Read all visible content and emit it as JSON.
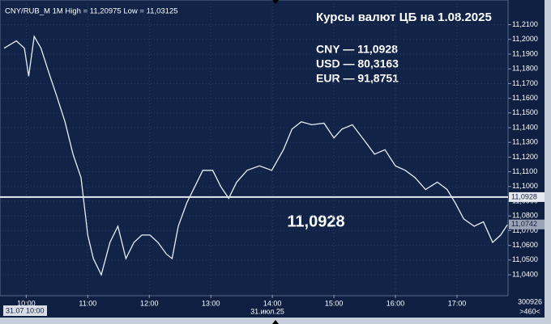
{
  "chart_data": {
    "type": "line",
    "header": "CNY/RUB_M 1M High = 11,20975 Low = 11,03125",
    "title": "Курсы валют ЦБ на 1.08.2025",
    "info": [
      "CNY — 11,0928",
      "USD — 80,3163",
      "EUR — 91,8751"
    ],
    "annotation": "11,0928",
    "level": {
      "value": 11.0928,
      "label": "11,0928"
    },
    "current": {
      "value": 11.0742,
      "label": "11,0742"
    },
    "x_start_label": "31.07 10:00",
    "date_label": "31.июл.25",
    "corner": [
      "300926",
      ">460<"
    ],
    "color": "#e8eef8",
    "grid": true,
    "xlim": [
      9.6,
      17.83
    ],
    "ylim": [
      11.0263,
      11.2202
    ],
    "xticks": [
      {
        "value": 10,
        "label": "10:00"
      },
      {
        "value": 11,
        "label": "11:00"
      },
      {
        "value": 12,
        "label": "12:00"
      },
      {
        "value": 13,
        "label": "13:00"
      },
      {
        "value": 14,
        "label": "14:00"
      },
      {
        "value": 15,
        "label": "15:00"
      },
      {
        "value": 16,
        "label": "16:00"
      },
      {
        "value": 17,
        "label": "17:00"
      }
    ],
    "yticks": [
      {
        "value": 11.04,
        "label": "11,0400"
      },
      {
        "value": 11.05,
        "label": "11,0500"
      },
      {
        "value": 11.06,
        "label": "11,0600"
      },
      {
        "value": 11.07,
        "label": "11,0700"
      },
      {
        "value": 11.08,
        "label": "11,0800"
      },
      {
        "value": 11.09,
        "label": "11,0900"
      },
      {
        "value": 11.1,
        "label": "11,1000"
      },
      {
        "value": 11.11,
        "label": "11,1100"
      },
      {
        "value": 11.12,
        "label": "11,1200"
      },
      {
        "value": 11.13,
        "label": "11,1300"
      },
      {
        "value": 11.14,
        "label": "11,1400"
      },
      {
        "value": 11.15,
        "label": "11,1500"
      },
      {
        "value": 11.16,
        "label": "11,1600"
      },
      {
        "value": 11.17,
        "label": "11,1700"
      },
      {
        "value": 11.18,
        "label": "11,1800"
      },
      {
        "value": 11.19,
        "label": "11,1900"
      },
      {
        "value": 11.2,
        "label": "11,2000"
      },
      {
        "value": 11.21,
        "label": "11,2100"
      }
    ],
    "x": [
      9.64,
      9.84,
      9.97,
      10.04,
      10.13,
      10.24,
      10.37,
      10.5,
      10.63,
      10.76,
      10.89,
      11.0,
      11.09,
      11.22,
      11.36,
      11.49,
      11.62,
      11.75,
      11.88,
      12.01,
      12.14,
      12.28,
      12.37,
      12.47,
      12.61,
      12.74,
      12.87,
      13.03,
      13.16,
      13.29,
      13.42,
      13.59,
      13.79,
      13.99,
      14.18,
      14.32,
      14.47,
      14.64,
      14.84,
      15.0,
      15.13,
      15.3,
      15.5,
      15.66,
      15.83,
      16.0,
      16.16,
      16.32,
      16.49,
      16.68,
      16.84,
      16.97,
      17.11,
      17.28,
      17.43,
      17.58,
      17.71,
      17.82
    ],
    "values": [
      11.194,
      11.199,
      11.194,
      11.175,
      11.202,
      11.194,
      11.177,
      11.161,
      11.144,
      11.122,
      11.106,
      11.067,
      11.051,
      11.04,
      11.062,
      11.073,
      11.051,
      11.062,
      11.067,
      11.067,
      11.062,
      11.054,
      11.051,
      11.073,
      11.089,
      11.1,
      11.111,
      11.111,
      11.1,
      11.092,
      11.103,
      11.111,
      11.114,
      11.111,
      11.125,
      11.139,
      11.144,
      11.142,
      11.143,
      11.133,
      11.139,
      11.142,
      11.131,
      11.122,
      11.125,
      11.114,
      11.111,
      11.106,
      11.098,
      11.103,
      11.098,
      11.089,
      11.078,
      11.073,
      11.076,
      11.062,
      11.067,
      11.074
    ]
  }
}
